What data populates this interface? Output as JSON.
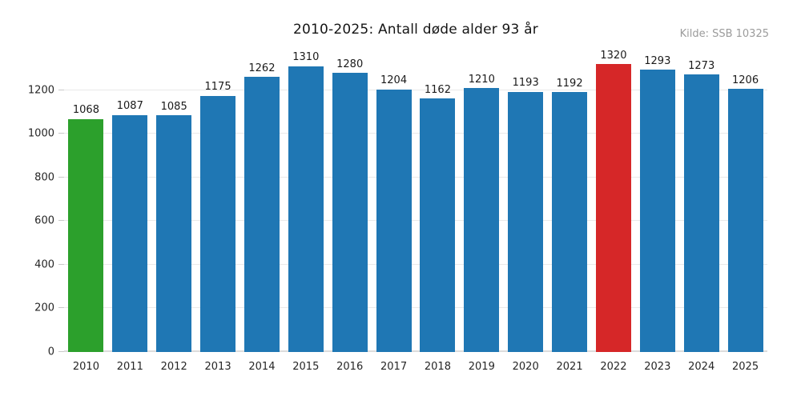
{
  "chart_data": {
    "type": "bar",
    "title": "2010-2025: Antall døde alder 93 år",
    "source": "Kilde: SSB 10325",
    "xlabel": "",
    "ylabel": "",
    "categories": [
      "2010",
      "2011",
      "2012",
      "2013",
      "2014",
      "2015",
      "2016",
      "2017",
      "2018",
      "2019",
      "2020",
      "2021",
      "2022",
      "2023",
      "2024",
      "2025"
    ],
    "values": [
      1068,
      1087,
      1085,
      1175,
      1262,
      1310,
      1280,
      1204,
      1162,
      1210,
      1193,
      1192,
      1320,
      1293,
      1273,
      1206
    ],
    "bar_colors": [
      "#2ca02c",
      "#1f77b4",
      "#1f77b4",
      "#1f77b4",
      "#1f77b4",
      "#1f77b4",
      "#1f77b4",
      "#1f77b4",
      "#1f77b4",
      "#1f77b4",
      "#1f77b4",
      "#1f77b4",
      "#d62728",
      "#1f77b4",
      "#1f77b4",
      "#1f77b4"
    ],
    "colors": {
      "default_bar": "#1f77b4",
      "first_year_highlight": "#2ca02c",
      "max_year_highlight": "#d62728",
      "gridline": "#e9e9e9",
      "text": "#1a1a1a",
      "source_text": "#9b9b9b"
    },
    "value_labels_shown": true,
    "yticks": [
      0,
      200,
      400,
      600,
      800,
      1000,
      1200
    ],
    "ylim": [
      0,
      1430
    ],
    "grid": "horizontal",
    "legend": "none"
  }
}
